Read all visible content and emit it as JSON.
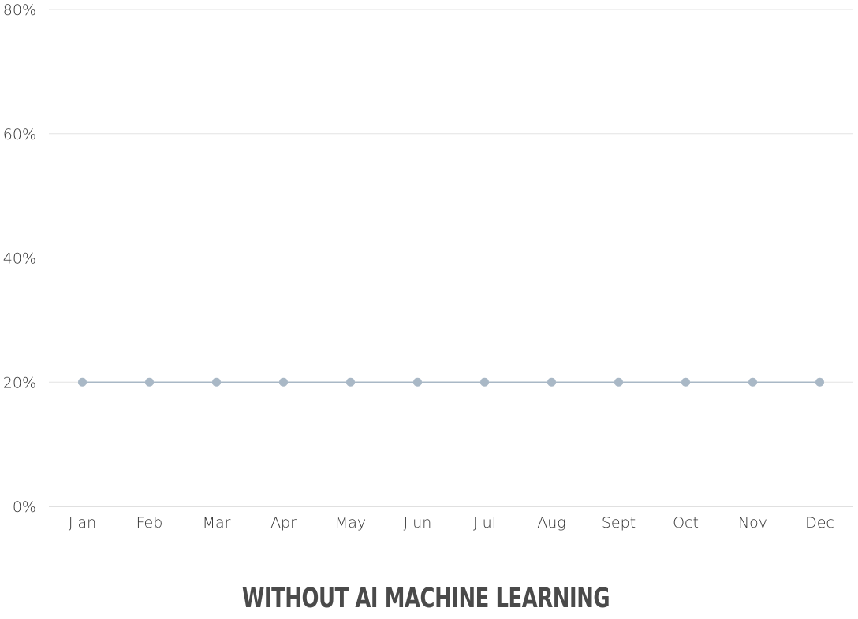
{
  "chart_data": {
    "type": "line",
    "title": "WITHOUT AI MACHINE LEARNING",
    "categories": [
      "J an",
      "Feb",
      "Mar",
      "Apr",
      "May",
      "J un",
      "J ul",
      "Aug",
      "Sept",
      "Oct",
      "Nov",
      "Dec"
    ],
    "series": [
      {
        "values": [
          20,
          20,
          20,
          20,
          20,
          20,
          20,
          20,
          20,
          20,
          20,
          20
        ]
      }
    ],
    "ylim": [
      0,
      80
    ],
    "yticks": [
      0,
      20,
      40,
      60,
      80
    ],
    "ytick_labels": [
      "0%",
      "20%",
      "40%",
      "60%",
      "80%"
    ],
    "xlabel": "",
    "ylabel": "",
    "grid": true,
    "legend": "none",
    "colors": {
      "series": "#a9b8c6",
      "grid": "#e3e3e3",
      "axis": "#c0c0c0"
    }
  }
}
